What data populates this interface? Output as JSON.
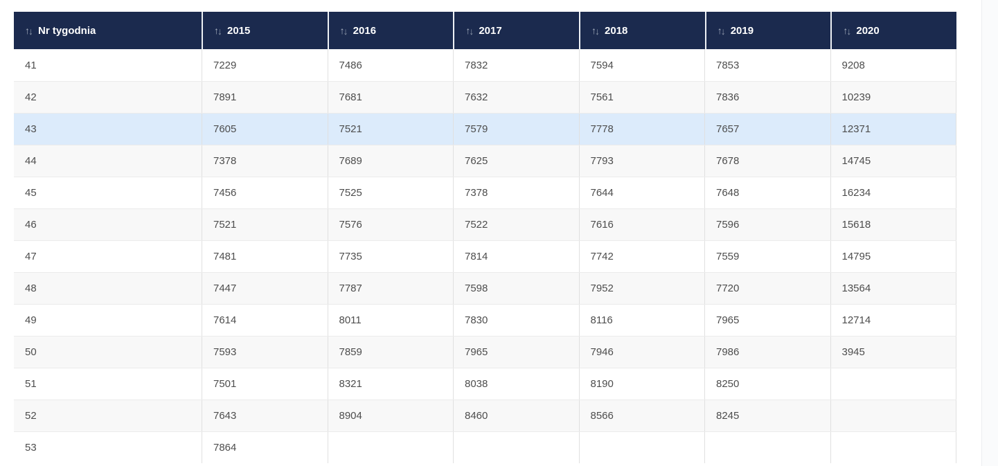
{
  "page": {
    "background": "#ffffff"
  },
  "table": {
    "sort_icons": {
      "up": "↑",
      "down": "↓"
    },
    "columns": [
      "Nr tygodnia",
      "2015",
      "2016",
      "2017",
      "2018",
      "2019",
      "2020"
    ],
    "rows": [
      {
        "week": "41",
        "values": [
          "7229",
          "7486",
          "7832",
          "7594",
          "7853",
          "9208"
        ],
        "highlighted": false
      },
      {
        "week": "42",
        "values": [
          "7891",
          "7681",
          "7632",
          "7561",
          "7836",
          "10239"
        ],
        "highlighted": false
      },
      {
        "week": "43",
        "values": [
          "7605",
          "7521",
          "7579",
          "7778",
          "7657",
          "12371"
        ],
        "highlighted": true
      },
      {
        "week": "44",
        "values": [
          "7378",
          "7689",
          "7625",
          "7793",
          "7678",
          "14745"
        ],
        "highlighted": false
      },
      {
        "week": "45",
        "values": [
          "7456",
          "7525",
          "7378",
          "7644",
          "7648",
          "16234"
        ],
        "highlighted": false
      },
      {
        "week": "46",
        "values": [
          "7521",
          "7576",
          "7522",
          "7616",
          "7596",
          "15618"
        ],
        "highlighted": false
      },
      {
        "week": "47",
        "values": [
          "7481",
          "7735",
          "7814",
          "7742",
          "7559",
          "14795"
        ],
        "highlighted": false
      },
      {
        "week": "48",
        "values": [
          "7447",
          "7787",
          "7598",
          "7952",
          "7720",
          "13564"
        ],
        "highlighted": false
      },
      {
        "week": "49",
        "values": [
          "7614",
          "8011",
          "7830",
          "8116",
          "7965",
          "12714"
        ],
        "highlighted": false
      },
      {
        "week": "50",
        "values": [
          "7593",
          "7859",
          "7965",
          "7946",
          "7986",
          "3945"
        ],
        "highlighted": false
      },
      {
        "week": "51",
        "values": [
          "7501",
          "8321",
          "8038",
          "8190",
          "8250",
          ""
        ],
        "highlighted": false
      },
      {
        "week": "52",
        "values": [
          "7643",
          "8904",
          "8460",
          "8566",
          "8245",
          ""
        ],
        "highlighted": false
      },
      {
        "week": "53",
        "values": [
          "7864",
          "",
          "",
          "",
          "",
          ""
        ],
        "highlighted": false
      }
    ],
    "colors": {
      "header_bg": "#1b2a4e",
      "header_text": "#ffffff",
      "sort_icon_up": "#a8b1c0",
      "sort_icon_down": "#8d98aa",
      "row_bg": "#ffffff",
      "row_alt_bg": "#f8f8f8",
      "row_highlight_bg": "#dcebfb",
      "cell_text": "#4d4d4d",
      "grid_line": "#e0e0e0"
    }
  }
}
